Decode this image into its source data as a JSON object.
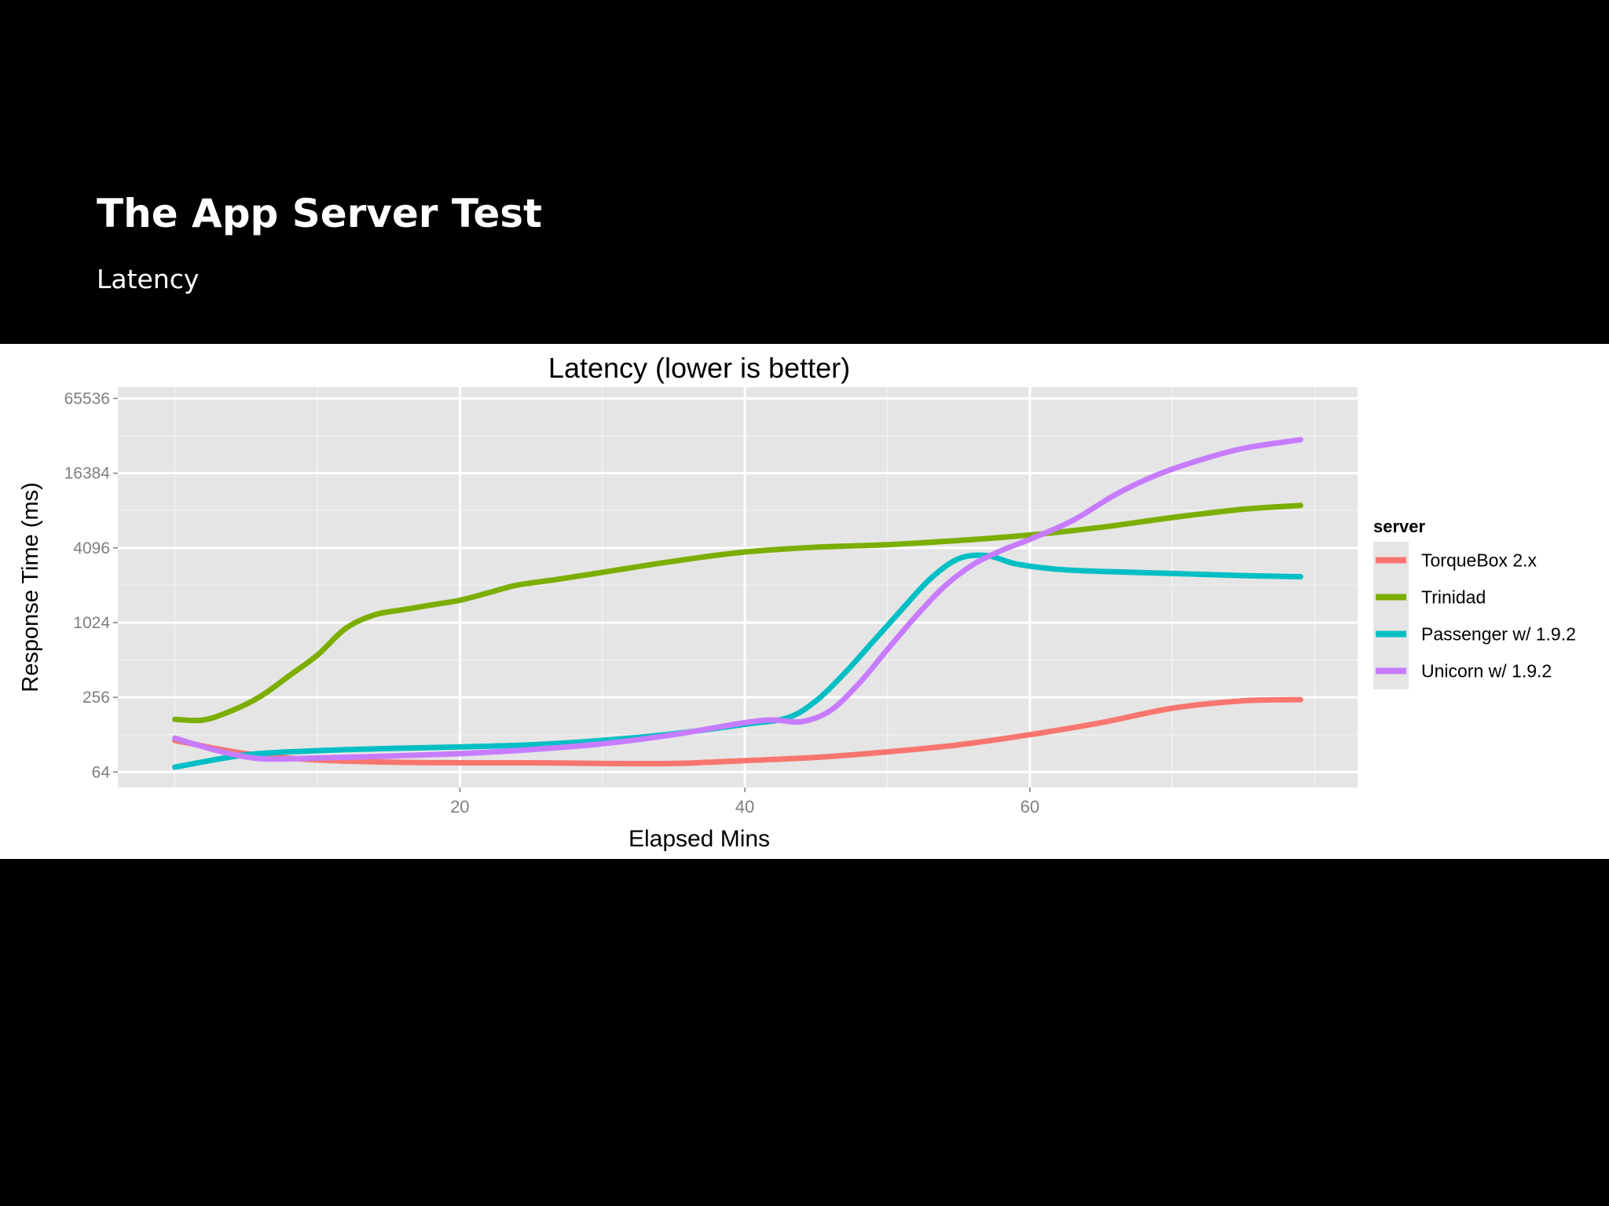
{
  "slide": {
    "title": "The App Server Test",
    "subtitle": "Latency"
  },
  "chart_data": {
    "type": "line",
    "title": "Latency (lower is better)",
    "xlabel": "Elapsed Mins",
    "ylabel": "Response Time (ms)",
    "xlim": [
      -4,
      83
    ],
    "ylim": [
      48,
      81000
    ],
    "y_scale": "log2",
    "x_ticks": [
      20,
      40,
      60
    ],
    "y_ticks": [
      64,
      256,
      1024,
      4096,
      16384,
      65536
    ],
    "grid": true,
    "panel_background": "#e5e5e5",
    "legend": {
      "title": "server",
      "position": "right"
    },
    "series": [
      {
        "name": "TorqueBox 2.x",
        "color": "#f8766d",
        "x": [
          0,
          5,
          10,
          15,
          20,
          25,
          30,
          35,
          40,
          45,
          50,
          55,
          60,
          65,
          70,
          75,
          79
        ],
        "y": [
          115,
          90,
          80,
          77,
          76,
          76,
          75,
          75,
          79,
          84,
          93,
          106,
          128,
          160,
          209,
          240,
          245
        ]
      },
      {
        "name": "Trinidad",
        "color": "#7cae00",
        "x": [
          0,
          2,
          4,
          6,
          8,
          10,
          12,
          14,
          16,
          18,
          20,
          22,
          24,
          27,
          30,
          35,
          40,
          45,
          50,
          55,
          60,
          65,
          70,
          75,
          79
        ],
        "y": [
          170,
          168,
          200,
          260,
          380,
          560,
          920,
          1180,
          1300,
          1420,
          1550,
          1780,
          2050,
          2300,
          2600,
          3200,
          3800,
          4150,
          4350,
          4700,
          5200,
          6000,
          7200,
          8400,
          9000
        ]
      },
      {
        "name": "Passenger w/ 1.9.2",
        "color": "#00bfc4",
        "x": [
          0,
          5,
          10,
          15,
          20,
          25,
          30,
          35,
          40,
          43,
          45,
          47,
          49,
          51,
          53,
          55,
          57,
          59,
          62,
          65,
          70,
          75,
          79
        ],
        "y": [
          70,
          88,
          95,
          99,
          102,
          106,
          115,
          130,
          155,
          175,
          240,
          400,
          720,
          1300,
          2300,
          3350,
          3550,
          3050,
          2750,
          2650,
          2550,
          2450,
          2400
        ]
      },
      {
        "name": "Unicorn w/ 1.9.2",
        "color": "#c77cff",
        "x": [
          0,
          3,
          6,
          10,
          15,
          20,
          25,
          30,
          35,
          40,
          42,
          44,
          46,
          48,
          50,
          52,
          54,
          56,
          58,
          60,
          63,
          66,
          69,
          72,
          75,
          79
        ],
        "y": [
          120,
          95,
          82,
          83,
          86,
          90,
          97,
          108,
          128,
          160,
          168,
          163,
          200,
          330,
          620,
          1150,
          2000,
          3000,
          3900,
          4800,
          6800,
          11000,
          16000,
          21000,
          26000,
          30500
        ]
      }
    ]
  }
}
